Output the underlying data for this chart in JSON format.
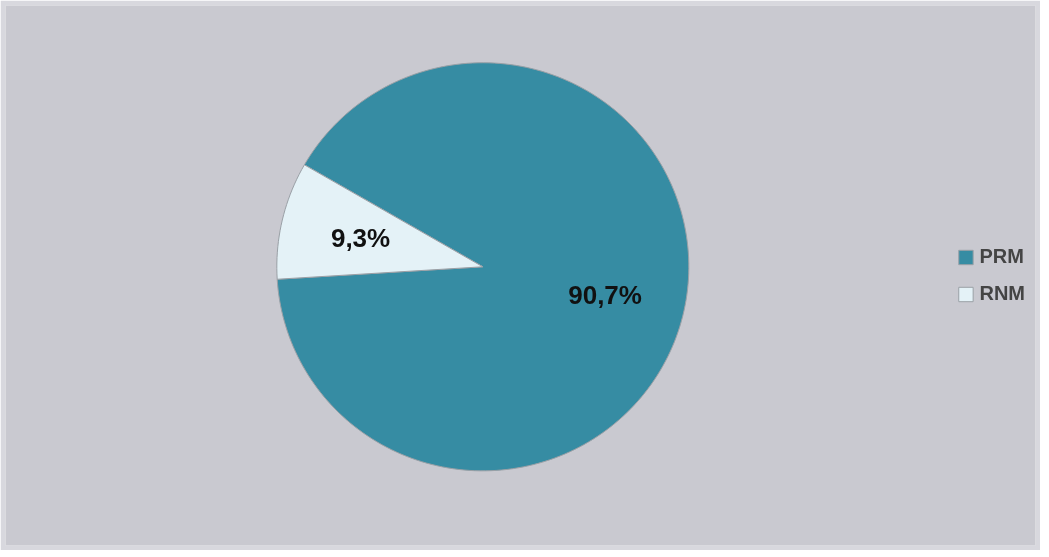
{
  "chart_data": {
    "type": "pie",
    "categories": [
      "PRM",
      "RNM"
    ],
    "values": [
      90.7,
      9.3
    ],
    "colors": [
      "#368ca3",
      "#e4f2f7"
    ],
    "value_labels": [
      "90,7%",
      "9,3%"
    ],
    "legend": "right"
  }
}
